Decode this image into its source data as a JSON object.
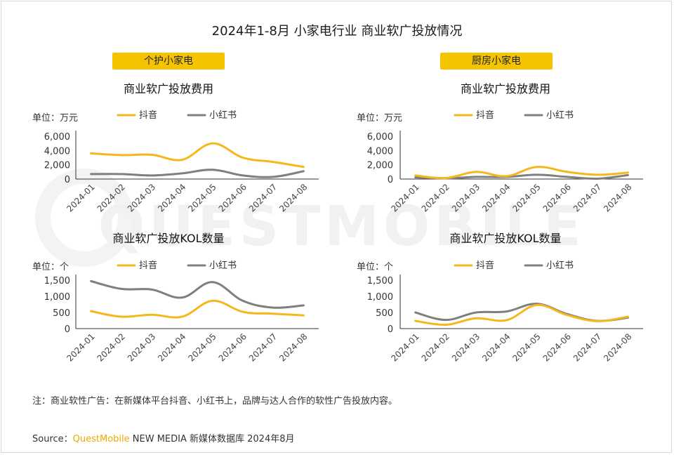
{
  "title": "2024年1-8月 小家电行业 商业软广投放情况",
  "tags": {
    "left": "个护小家电",
    "right": "厨房小家电"
  },
  "watermark": "QUESTMOBILE",
  "colors": {
    "douyin": "#f5b81c",
    "xiaohongshu": "#7f7f7f",
    "tag_bg": "#f5c400",
    "brand": "#f0a800"
  },
  "note": "注：商业软性广告：在新媒体平台抖音、小红书上，品牌与达人合作的软性广告投放内容。",
  "source": {
    "prefix": "Source：",
    "brand": "QuestMobile",
    "rest": " NEW MEDIA 新媒体数据库 2024年8月"
  },
  "chart_data": [
    {
      "id": "personal-care-spend",
      "type": "line",
      "title": "商业软广投放费用",
      "unit": "单位：万元",
      "categories": [
        "2024-01",
        "2024-02",
        "2024-03",
        "2024-04",
        "2024-05",
        "2024-06",
        "2024-07",
        "2024-08"
      ],
      "ylim": [
        0,
        6000
      ],
      "yticks": [
        "0",
        "2,000",
        "4,000",
        "6,000"
      ],
      "series": [
        {
          "name": "抖音",
          "values": [
            3600,
            3350,
            3400,
            2700,
            5000,
            3000,
            2400,
            1700
          ]
        },
        {
          "name": "小红书",
          "values": [
            700,
            700,
            500,
            800,
            1300,
            500,
            300,
            1100
          ]
        }
      ]
    },
    {
      "id": "kitchen-spend",
      "type": "line",
      "title": "商业软广投放费用",
      "unit": "单位：万元",
      "categories": [
        "2024-01",
        "2024-02",
        "2024-03",
        "2024-04",
        "2024-05",
        "2024-06",
        "2024-07",
        "2024-08"
      ],
      "ylim": [
        0,
        6000
      ],
      "yticks": [
        "0",
        "2,000",
        "4,000",
        "6,000"
      ],
      "series": [
        {
          "name": "抖音",
          "values": [
            500,
            150,
            1000,
            400,
            1700,
            1000,
            600,
            900
          ]
        },
        {
          "name": "小红书",
          "values": [
            250,
            100,
            300,
            300,
            600,
            300,
            50,
            550
          ]
        }
      ]
    },
    {
      "id": "personal-care-kol",
      "type": "line",
      "title": "商业软广投放KOL数量",
      "unit": "单位：个",
      "categories": [
        "2024-01",
        "2024-02",
        "2024-03",
        "2024-04",
        "2024-05",
        "2024-06",
        "2024-07",
        "2024-08"
      ],
      "ylim": [
        0,
        1500
      ],
      "yticks": [
        "0",
        "500",
        "1,000",
        "1,500"
      ],
      "series": [
        {
          "name": "抖音",
          "values": [
            540,
            370,
            430,
            370,
            860,
            520,
            460,
            410
          ]
        },
        {
          "name": "小红书",
          "values": [
            1470,
            1230,
            1210,
            960,
            1440,
            860,
            650,
            720
          ]
        }
      ]
    },
    {
      "id": "kitchen-kol",
      "type": "line",
      "title": "商业软广投放KOL数量",
      "unit": "单位：个",
      "categories": [
        "2024-01",
        "2024-02",
        "2024-03",
        "2024-04",
        "2024-05",
        "2024-06",
        "2024-07",
        "2024-08"
      ],
      "ylim": [
        0,
        1500
      ],
      "yticks": [
        "0",
        "500",
        "1,000",
        "1,500"
      ],
      "series": [
        {
          "name": "抖音",
          "values": [
            240,
            120,
            320,
            260,
            730,
            420,
            230,
            370
          ]
        },
        {
          "name": "小红书",
          "values": [
            500,
            270,
            500,
            530,
            770,
            450,
            240,
            340
          ]
        }
      ]
    }
  ]
}
